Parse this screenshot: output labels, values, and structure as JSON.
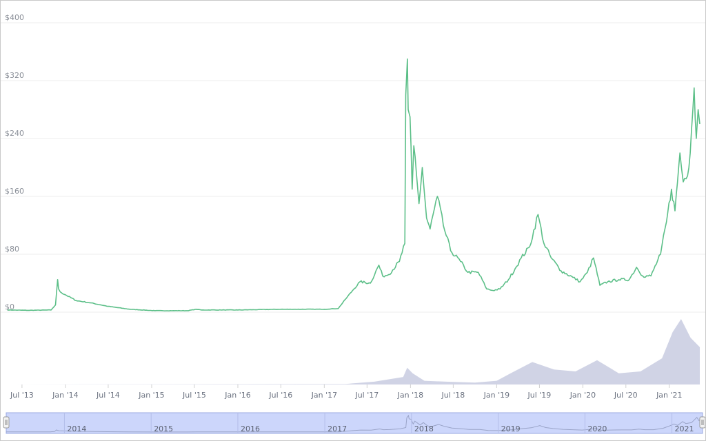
{
  "chart_data": {
    "type": "line",
    "title": "",
    "xlabel": "",
    "ylabel": "",
    "y_ticks": [
      "$0",
      "$80",
      "$160",
      "$240",
      "$320",
      "$400"
    ],
    "y_tick_values": [
      0,
      80,
      160,
      240,
      320,
      400
    ],
    "ylim": [
      0,
      400
    ],
    "x_ticks": [
      {
        "label": "Jul '13",
        "date": "2013-07-01"
      },
      {
        "label": "Jan '14",
        "date": "2014-01-01"
      },
      {
        "label": "Jul '14",
        "date": "2014-07-01"
      },
      {
        "label": "Jan '15",
        "date": "2015-01-01"
      },
      {
        "label": "Jul '15",
        "date": "2015-07-01"
      },
      {
        "label": "Jan '16",
        "date": "2016-01-01"
      },
      {
        "label": "Jul '16",
        "date": "2016-07-01"
      },
      {
        "label": "Jan '17",
        "date": "2017-01-01"
      },
      {
        "label": "Jul '17",
        "date": "2017-07-01"
      },
      {
        "label": "Jan '18",
        "date": "2018-01-01"
      },
      {
        "label": "Jul '18",
        "date": "2018-07-01"
      },
      {
        "label": "Jan '19",
        "date": "2019-01-01"
      },
      {
        "label": "Jul '19",
        "date": "2019-07-01"
      },
      {
        "label": "Jan '20",
        "date": "2020-01-01"
      },
      {
        "label": "Jul '20",
        "date": "2020-07-01"
      },
      {
        "label": "Jan '21",
        "date": "2021-01-01"
      }
    ],
    "xlim": [
      "2013-05-01",
      "2021-05-10"
    ],
    "grid": true,
    "legend": "none",
    "series": [
      {
        "color": "#5cbf88",
        "points": [
          [
            "2013-05-01",
            3
          ],
          [
            "2013-08-01",
            2.5
          ],
          [
            "2013-11-01",
            3
          ],
          [
            "2013-11-20",
            10
          ],
          [
            "2013-11-29",
            45
          ],
          [
            "2013-12-03",
            32
          ],
          [
            "2013-12-10",
            28
          ],
          [
            "2014-01-01",
            24
          ],
          [
            "2014-02-15",
            16
          ],
          [
            "2014-04-15",
            13
          ],
          [
            "2014-07-01",
            8
          ],
          [
            "2014-10-01",
            4
          ],
          [
            "2015-01-15",
            2
          ],
          [
            "2015-06-01",
            2
          ],
          [
            "2015-07-10",
            4
          ],
          [
            "2015-08-01",
            3
          ],
          [
            "2016-01-01",
            3
          ],
          [
            "2016-07-01",
            4
          ],
          [
            "2016-09-01",
            4
          ],
          [
            "2017-01-01",
            4
          ],
          [
            "2017-03-01",
            5
          ],
          [
            "2017-04-01",
            18
          ],
          [
            "2017-05-01",
            30
          ],
          [
            "2017-06-01",
            42
          ],
          [
            "2017-07-15",
            40
          ],
          [
            "2017-08-20",
            65
          ],
          [
            "2017-09-05",
            50
          ],
          [
            "2017-10-01",
            52
          ],
          [
            "2017-11-15",
            70
          ],
          [
            "2017-12-08",
            95
          ],
          [
            "2017-12-12",
            300
          ],
          [
            "2017-12-19",
            350
          ],
          [
            "2017-12-22",
            280
          ],
          [
            "2017-12-30",
            270
          ],
          [
            "2018-01-08",
            170
          ],
          [
            "2018-01-15",
            230
          ],
          [
            "2018-02-06",
            150
          ],
          [
            "2018-02-20",
            200
          ],
          [
            "2018-03-10",
            130
          ],
          [
            "2018-03-25",
            115
          ],
          [
            "2018-04-25",
            160
          ],
          [
            "2018-05-20",
            120
          ],
          [
            "2018-06-20",
            85
          ],
          [
            "2018-08-01",
            70
          ],
          [
            "2018-09-01",
            55
          ],
          [
            "2018-10-15",
            55
          ],
          [
            "2018-11-20",
            32
          ],
          [
            "2018-12-15",
            30
          ],
          [
            "2019-01-15",
            32
          ],
          [
            "2019-02-20",
            45
          ],
          [
            "2019-03-20",
            60
          ],
          [
            "2019-04-15",
            75
          ],
          [
            "2019-05-20",
            90
          ],
          [
            "2019-06-25",
            135
          ],
          [
            "2019-07-20",
            95
          ],
          [
            "2019-08-20",
            75
          ],
          [
            "2019-10-01",
            57
          ],
          [
            "2019-11-20",
            48
          ],
          [
            "2019-12-20",
            42
          ],
          [
            "2020-01-20",
            55
          ],
          [
            "2020-02-15",
            75
          ],
          [
            "2020-03-13",
            37
          ],
          [
            "2020-04-15",
            42
          ],
          [
            "2020-06-01",
            45
          ],
          [
            "2020-07-15",
            45
          ],
          [
            "2020-08-15",
            62
          ],
          [
            "2020-09-10",
            50
          ],
          [
            "2020-10-15",
            50
          ],
          [
            "2020-11-25",
            80
          ],
          [
            "2020-12-20",
            125
          ],
          [
            "2021-01-10",
            170
          ],
          [
            "2021-01-25",
            140
          ],
          [
            "2021-02-15",
            220
          ],
          [
            "2021-03-01",
            180
          ],
          [
            "2021-03-25",
            200
          ],
          [
            "2021-04-16",
            310
          ],
          [
            "2021-04-25",
            240
          ],
          [
            "2021-05-03",
            280
          ],
          [
            "2021-05-10",
            260
          ]
        ]
      }
    ],
    "volume": {
      "color": "#c8cbe0",
      "points": [
        [
          "2013-05-01",
          0
        ],
        [
          "2017-04-01",
          0.3
        ],
        [
          "2017-08-01",
          1.5
        ],
        [
          "2017-12-01",
          4
        ],
        [
          "2017-12-18",
          9
        ],
        [
          "2018-01-10",
          6
        ],
        [
          "2018-03-01",
          2
        ],
        [
          "2018-06-01",
          1.5
        ],
        [
          "2018-10-01",
          1
        ],
        [
          "2019-01-01",
          2
        ],
        [
          "2019-03-01",
          6
        ],
        [
          "2019-06-01",
          12
        ],
        [
          "2019-09-01",
          8
        ],
        [
          "2019-12-01",
          7
        ],
        [
          "2020-03-01",
          13
        ],
        [
          "2020-06-01",
          6
        ],
        [
          "2020-09-01",
          7
        ],
        [
          "2020-12-01",
          14
        ],
        [
          "2021-01-15",
          28
        ],
        [
          "2021-02-20",
          35
        ],
        [
          "2021-04-01",
          25
        ],
        [
          "2021-05-10",
          20
        ]
      ]
    },
    "navigator": {
      "year_labels": [
        "2014",
        "2015",
        "2016",
        "2017",
        "2018",
        "2019",
        "2020",
        "2021"
      ],
      "year_dates": [
        "2014-01-01",
        "2015-01-01",
        "2016-01-01",
        "2017-01-01",
        "2018-01-01",
        "2019-01-01",
        "2020-01-01",
        "2021-01-01"
      ]
    }
  },
  "colors": {
    "line": "#5cbf88",
    "volume": "#c8cbe0",
    "navigator_fill": "#ccd6fb",
    "navigator_border": "#9aa8e0"
  }
}
